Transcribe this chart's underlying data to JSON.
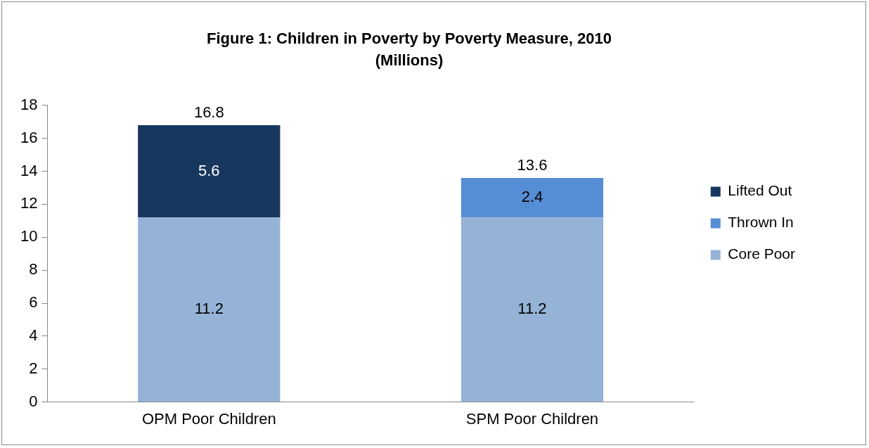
{
  "chart_data": {
    "type": "bar",
    "title": "Figure 1: Children in Poverty by Poverty Measure, 2010",
    "subtitle": "(Millions)",
    "categories": [
      "OPM Poor Children",
      "SPM Poor Children"
    ],
    "stacked": true,
    "series": [
      {
        "name": "Core Poor",
        "color": "#95b3d7",
        "values": [
          11.2,
          11.2
        ]
      },
      {
        "name": "Thrown In",
        "color": "#558ed5",
        "values": [
          null,
          2.4
        ]
      },
      {
        "name": "Lifted Out",
        "color": "#17375e",
        "values": [
          5.6,
          null
        ]
      }
    ],
    "totals": [
      "16.8",
      "13.6"
    ],
    "data_labels": true,
    "ylim": [
      0,
      18
    ],
    "yticks": [
      0,
      2,
      4,
      6,
      8,
      10,
      12,
      14,
      16,
      18
    ],
    "grid": false,
    "legend": "right"
  }
}
